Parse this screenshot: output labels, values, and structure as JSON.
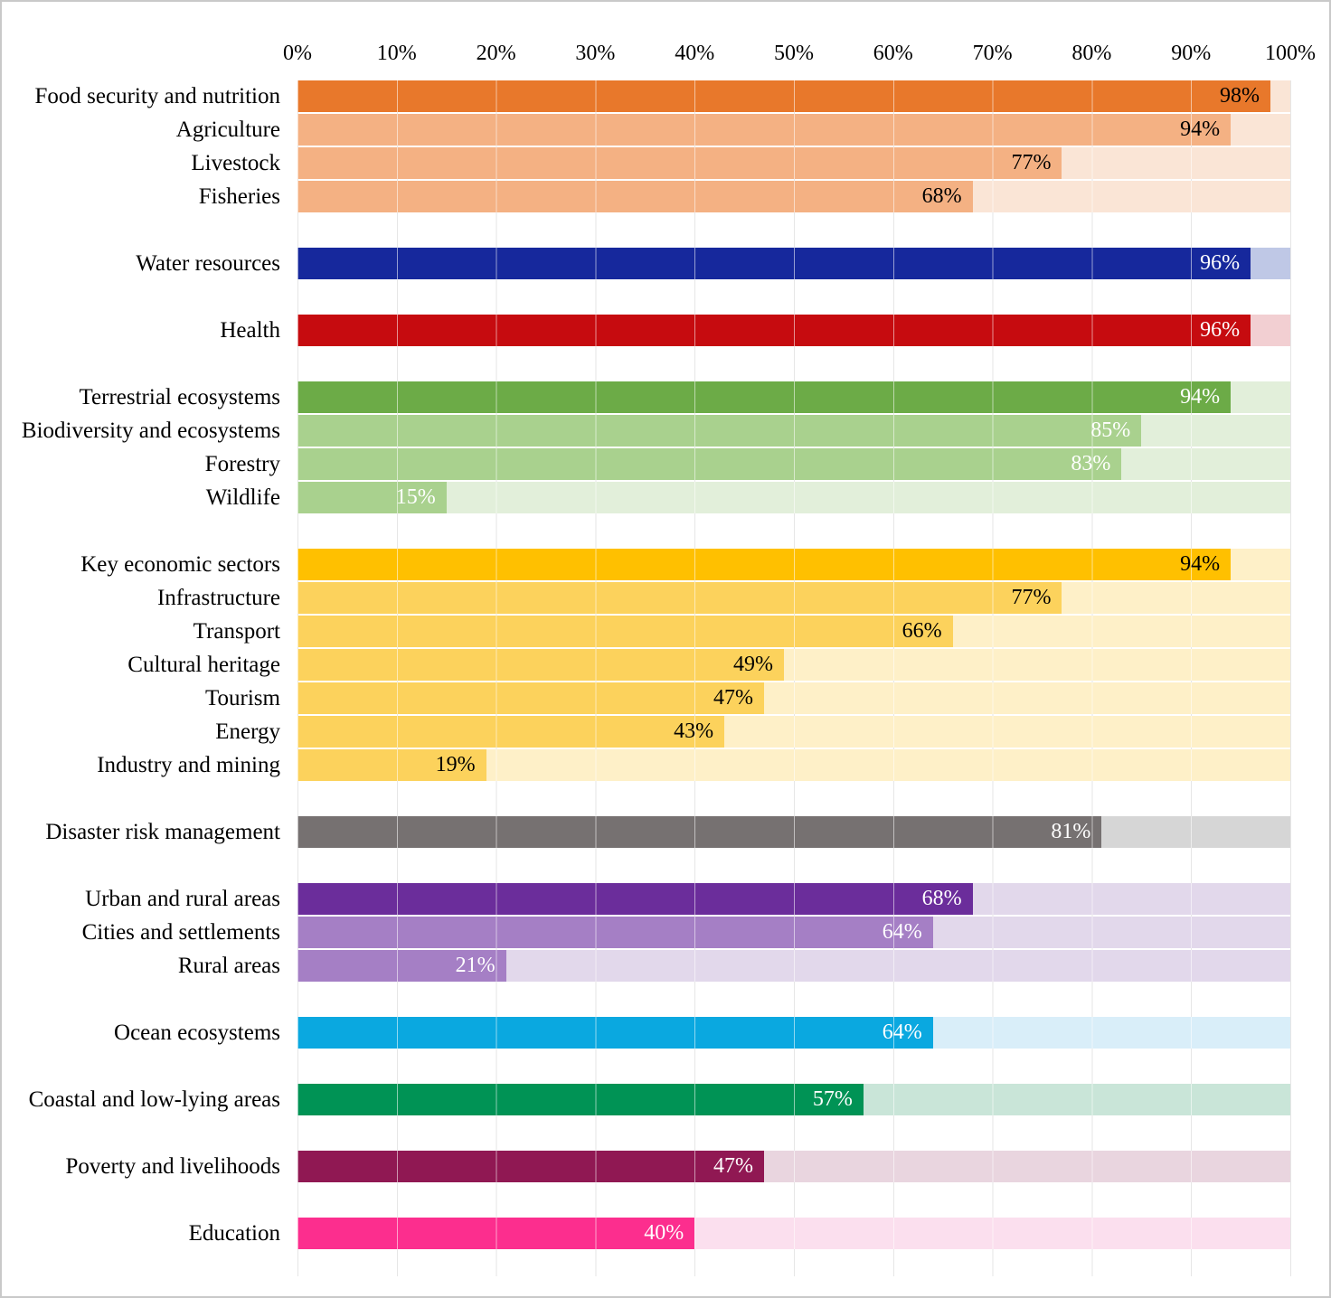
{
  "chart_data": {
    "type": "bar",
    "orientation": "horizontal",
    "title": "",
    "xlabel": "",
    "ylabel": "",
    "x_range": [
      0,
      100
    ],
    "x_ticks": [
      "0%",
      "10%",
      "20%",
      "30%",
      "40%",
      "50%",
      "60%",
      "70%",
      "80%",
      "90%",
      "100%"
    ],
    "grid": "vertical gridlines every 10%, full-length 100% background track behind each bar",
    "legend": "none",
    "background_color": "#ffffff",
    "border_color": "#c9c9c9",
    "gridline_color": "#e6e6e6",
    "groups": [
      {
        "name": "food-security",
        "colors": {
          "primary": "#e8782b",
          "secondary": "#f4b183",
          "track": "#fae5d6"
        },
        "value_text_color": "#000000",
        "bars": [
          {
            "label": "Food security and nutrition",
            "value": 98,
            "value_label": "98%"
          },
          {
            "label": "Agriculture",
            "value": 94,
            "value_label": "94%"
          },
          {
            "label": "Livestock",
            "value": 77,
            "value_label": "77%"
          },
          {
            "label": "Fisheries",
            "value": 68,
            "value_label": "68%"
          }
        ]
      },
      {
        "name": "water",
        "colors": {
          "primary": "#16289c",
          "secondary": "#16289c",
          "track": "#bfc8e6"
        },
        "value_text_color": "#ffffff",
        "bars": [
          {
            "label": "Water resources",
            "value": 96,
            "value_label": "96%"
          }
        ]
      },
      {
        "name": "health",
        "colors": {
          "primary": "#c60b0f",
          "secondary": "#c60b0f",
          "track": "#f2cfd2"
        },
        "value_text_color": "#ffffff",
        "bars": [
          {
            "label": "Health",
            "value": 96,
            "value_label": "96%"
          }
        ]
      },
      {
        "name": "terrestrial-ecosystems",
        "colors": {
          "primary": "#6cab47",
          "secondary": "#a9d18e",
          "track": "#e2efda"
        },
        "value_text_color": "#ffffff",
        "bars": [
          {
            "label": "Terrestrial ecosystems",
            "value": 94,
            "value_label": "94%"
          },
          {
            "label": "Biodiversity and ecosystems",
            "value": 85,
            "value_label": "85%"
          },
          {
            "label": "Forestry",
            "value": 83,
            "value_label": "83%"
          },
          {
            "label": "Wildlife",
            "value": 15,
            "value_label": "15%"
          }
        ]
      },
      {
        "name": "economic-sectors",
        "colors": {
          "primary": "#ffc000",
          "secondary": "#fcd25c",
          "track": "#fef0c8"
        },
        "value_text_color": "#000000",
        "bars": [
          {
            "label": "Key economic sectors",
            "value": 94,
            "value_label": "94%"
          },
          {
            "label": "Infrastructure",
            "value": 77,
            "value_label": "77%"
          },
          {
            "label": "Transport",
            "value": 66,
            "value_label": "66%"
          },
          {
            "label": "Cultural heritage",
            "value": 49,
            "value_label": "49%"
          },
          {
            "label": "Tourism",
            "value": 47,
            "value_label": "47%"
          },
          {
            "label": "Energy",
            "value": 43,
            "value_label": "43%"
          },
          {
            "label": "Industry and mining",
            "value": 19,
            "value_label": "19%"
          }
        ]
      },
      {
        "name": "disaster-risk",
        "colors": {
          "primary": "#767171",
          "secondary": "#767171",
          "track": "#d6d6d6"
        },
        "value_text_color": "#ffffff",
        "bars": [
          {
            "label": "Disaster risk management",
            "value": 81,
            "value_label": "81%"
          }
        ]
      },
      {
        "name": "urban-rural",
        "colors": {
          "primary": "#6b2d9b",
          "secondary": "#a57fc5",
          "track": "#e2d8eb"
        },
        "value_text_color": "#ffffff",
        "bars": [
          {
            "label": "Urban and rural areas",
            "value": 68,
            "value_label": "68%"
          },
          {
            "label": "Cities and settlements",
            "value": 64,
            "value_label": "64%"
          },
          {
            "label": "Rural areas",
            "value": 21,
            "value_label": "21%"
          }
        ]
      },
      {
        "name": "ocean",
        "colors": {
          "primary": "#0aa8e0",
          "secondary": "#0aa8e0",
          "track": "#d9eef9"
        },
        "value_text_color": "#ffffff",
        "bars": [
          {
            "label": "Ocean ecosystems",
            "value": 64,
            "value_label": "64%"
          }
        ]
      },
      {
        "name": "coastal",
        "colors": {
          "primary": "#009355",
          "secondary": "#009355",
          "track": "#c9e5d8"
        },
        "value_text_color": "#ffffff",
        "bars": [
          {
            "label": "Coastal and low-lying areas",
            "value": 57,
            "value_label": "57%"
          }
        ]
      },
      {
        "name": "poverty",
        "colors": {
          "primary": "#901853",
          "secondary": "#901853",
          "track": "#e9d5df"
        },
        "value_text_color": "#ffffff",
        "bars": [
          {
            "label": "Poverty and livelihoods",
            "value": 47,
            "value_label": "47%"
          }
        ]
      },
      {
        "name": "education",
        "colors": {
          "primary": "#fc2e8e",
          "secondary": "#fc2e8e",
          "track": "#fbdfee"
        },
        "value_text_color": "#ffffff",
        "bars": [
          {
            "label": "Education",
            "value": 40,
            "value_label": "40%"
          }
        ]
      }
    ]
  }
}
